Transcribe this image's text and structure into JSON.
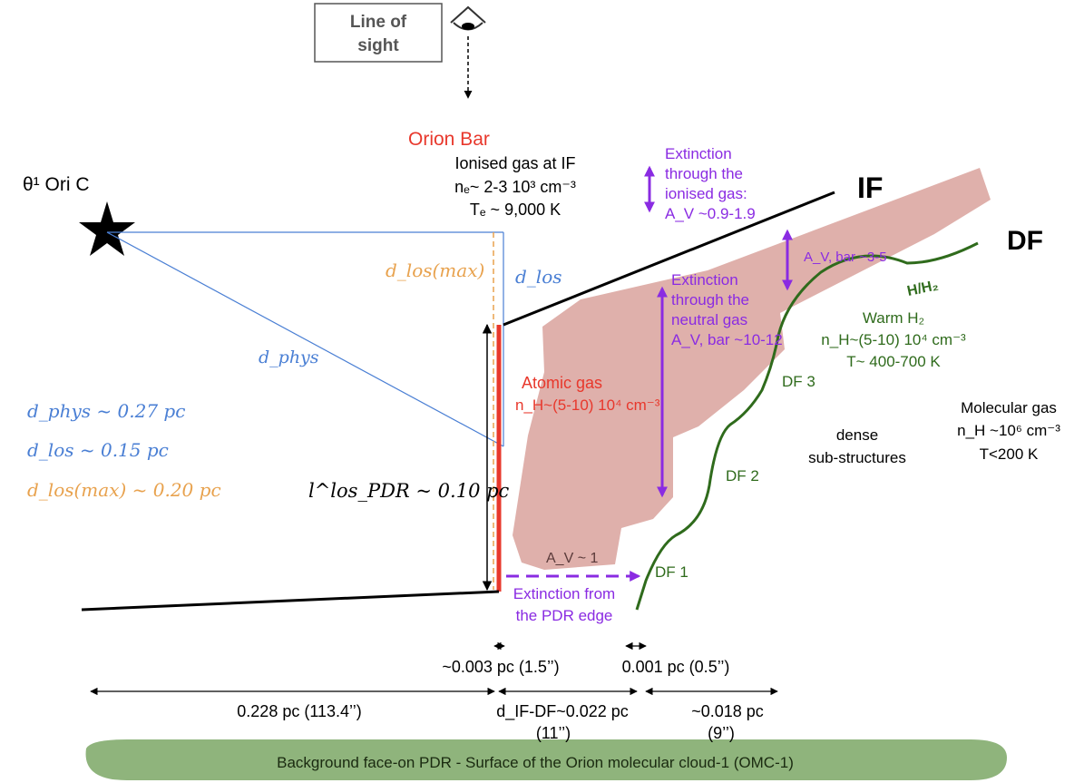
{
  "line_of_sight": {
    "line1": "Line of",
    "line2": "sight"
  },
  "star": {
    "label": "θ¹ Ori C"
  },
  "orion_bar": {
    "title": "Orion Bar",
    "ionised_title": "Ionised gas at IF",
    "ne": "nₑ~ 2-3 10³ cm⁻³",
    "te": "Tₑ ~ 9,000 K"
  },
  "extinction_ionised": {
    "line1": "Extinction",
    "line2": "through the",
    "line3": "ionised gas:",
    "line4": "A_V ~0.9-1.9"
  },
  "labels": {
    "if": "IF",
    "df": "DF",
    "h_h2": "H/H₂",
    "av_bar": "A_V, bar ~3-5"
  },
  "extinction_neutral": {
    "line1": "Extinction",
    "line2": "through the",
    "line3": "neutral gas",
    "line4": "A_V, bar ~10-12"
  },
  "warm_h2": {
    "title": "Warm H₂",
    "nh": "n_H~(5-10) 10⁴ cm⁻³",
    "t": "T~ 400-700 K"
  },
  "atomic_gas": {
    "title": "Atomic gas",
    "nh": "n_H~(5-10) 10⁴ cm⁻³"
  },
  "molecular_gas": {
    "title": "Molecular gas",
    "nh": "n_H ~10⁶ cm⁻³",
    "t": "T<200 K"
  },
  "dense": {
    "line1": "dense",
    "line2": "sub-structures"
  },
  "df_labels": {
    "df1": "DF 1",
    "df2": "DF 2",
    "df3": "DF 3"
  },
  "av_edge": "A_V ~ 1",
  "extinction_edge": {
    "line1": "Extinction from",
    "line2": "the PDR edge"
  },
  "distances": {
    "d_los_max": "d_los(max)",
    "d_los": "d_los",
    "d_phys": "d_phys",
    "eq_phys": "d_phys ~ 0.27 pc",
    "eq_los": "d_los ~ 0.15 pc",
    "eq_los_max": "d_los(max) ~ 0.20 pc",
    "l_pdr": "l^los_PDR ~ 0.10 pc"
  },
  "scales": {
    "s1": "~0.003 pc (1.5’’)",
    "s2": "0.001 pc (0.5’’)",
    "s3": "0.228 pc (113.4’’)",
    "s4a": "d_IF-DF~0.022 pc",
    "s4b": "(11’’)",
    "s5a": "~0.018 pc",
    "s5b": "(9’’)"
  },
  "background": "Background face-on PDR - Surface of the Orion molecular cloud-1 (OMC-1)",
  "colors": {
    "purple": "#8a2be2",
    "red": "#e8382c",
    "orange": "#e8a24e",
    "blue": "#4a7fd4",
    "green": "#2f6b1c",
    "pink": "#d9a29c",
    "bg_green": "#8fb47c"
  }
}
